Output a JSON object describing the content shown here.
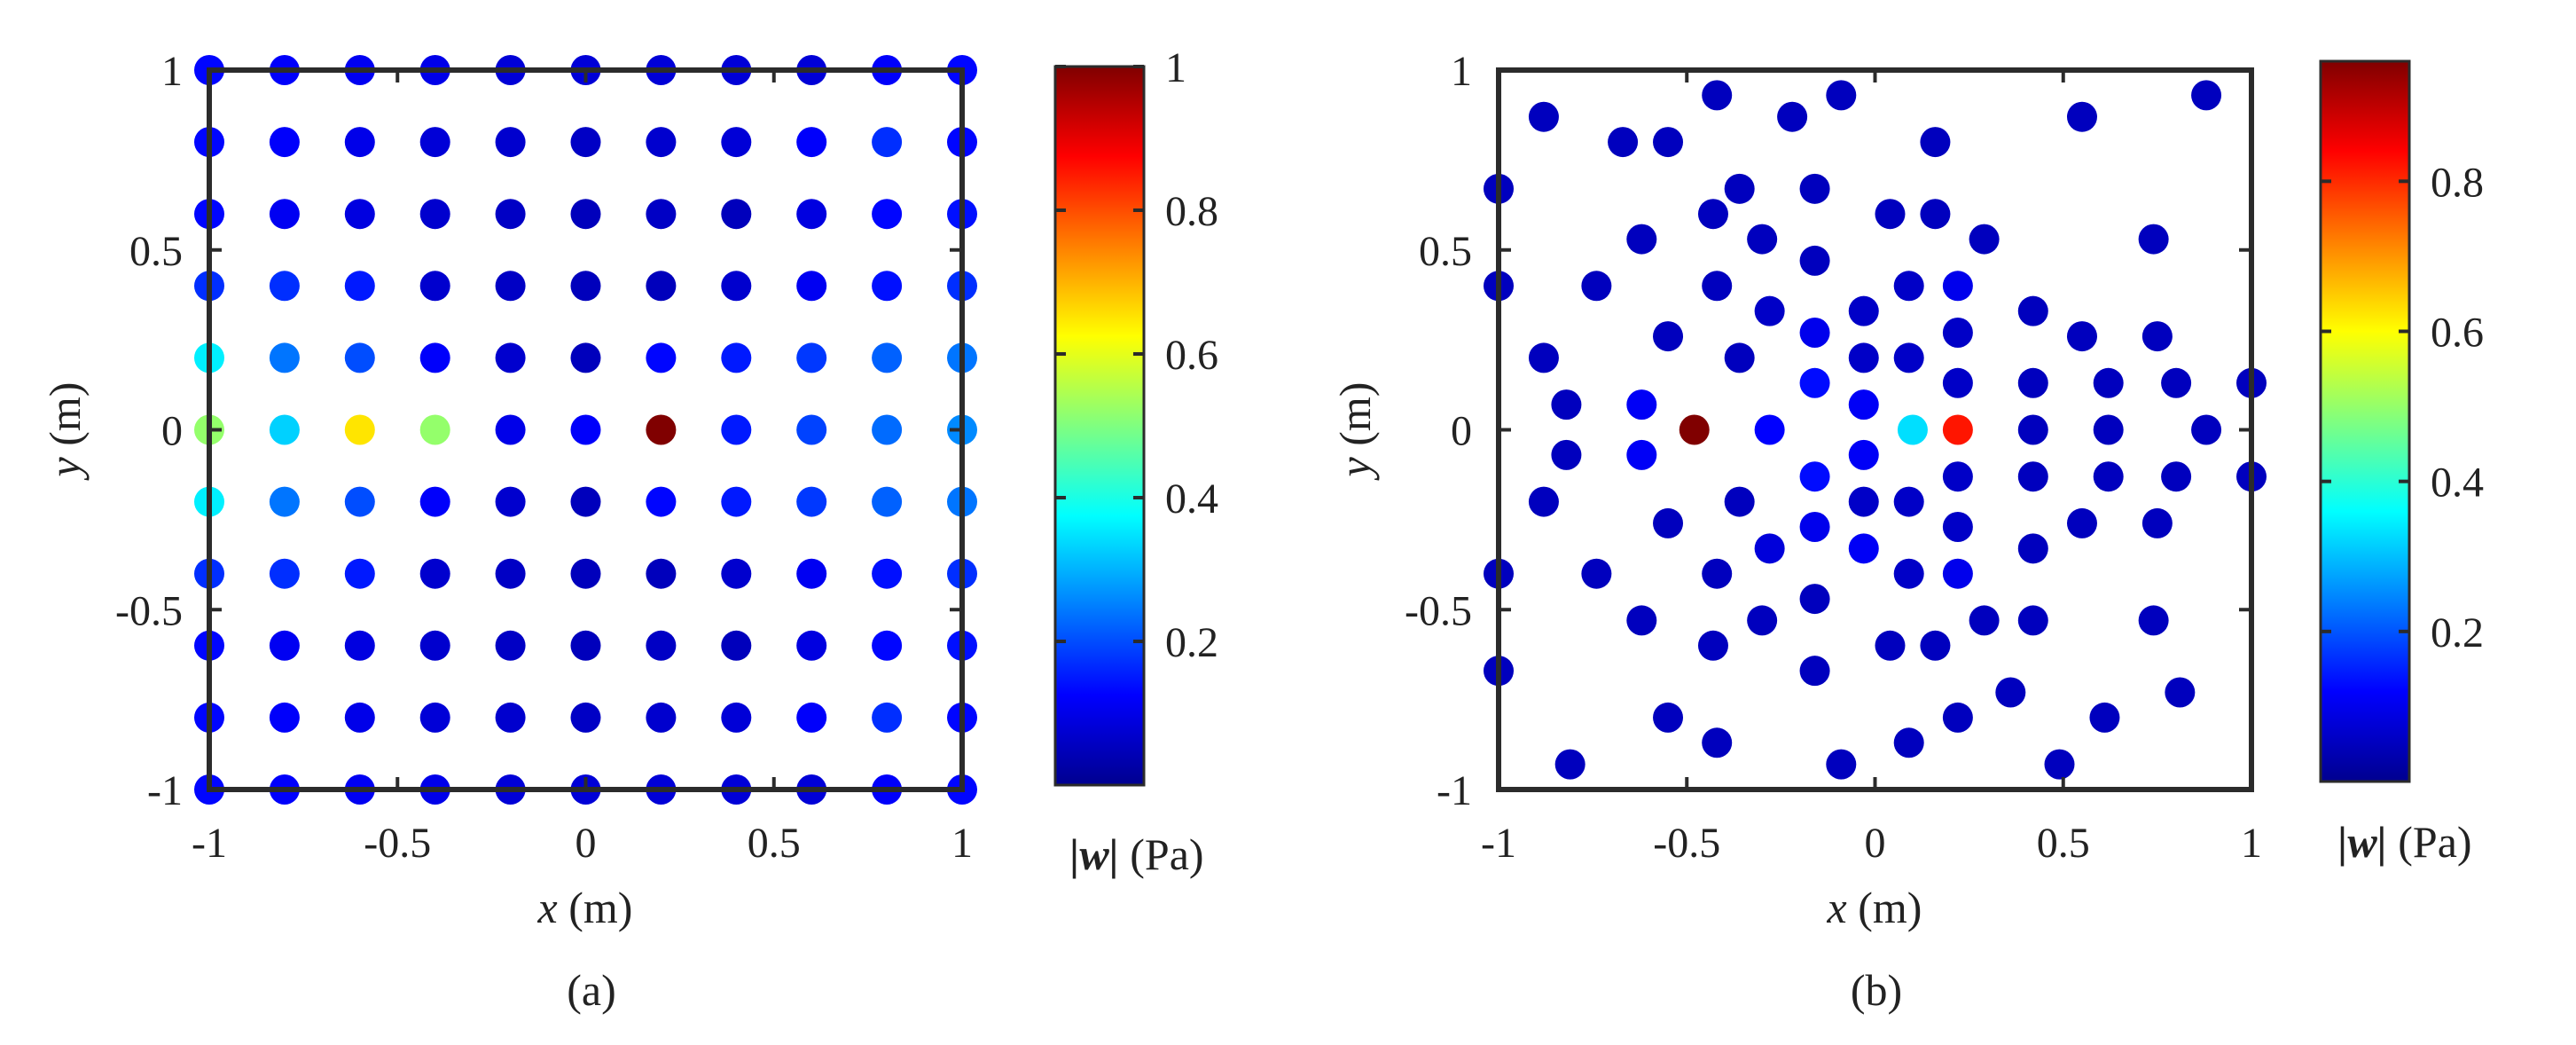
{
  "chart_data": [
    {
      "type": "scatter",
      "panel_caption": "(a)",
      "x_tick_labels": [
        "-1",
        "-0.5",
        "0",
        "0.5",
        "1"
      ],
      "y_tick_labels": [
        "1",
        "0.5",
        "0",
        "-0.5",
        "-1"
      ],
      "xlabel_var": "x",
      "xlabel_unit": " (m)",
      "ylabel_var": "y",
      "ylabel_unit": " (m)",
      "xlim": [
        -1,
        1
      ],
      "ylim": [
        -1,
        1
      ],
      "grid": false,
      "colormap": "jet",
      "colorbar": {
        "range": [
          0,
          1
        ],
        "tick_values": [
          0.2,
          0.4,
          0.6,
          0.8,
          1
        ],
        "tick_labels": [
          "0.2",
          "0.4",
          "0.6",
          "0.8",
          "1"
        ],
        "label_var": "|w|",
        "label_unit": " (Pa)"
      },
      "points": [
        {
          "x": -1,
          "y": 1,
          "v": 0.13
        },
        {
          "x": -0.8,
          "y": 1,
          "v": 0.12
        },
        {
          "x": -0.6,
          "y": 1,
          "v": 0.11
        },
        {
          "x": -0.4,
          "y": 1,
          "v": 0.1
        },
        {
          "x": -0.2,
          "y": 1,
          "v": 0.08
        },
        {
          "x": 0,
          "y": 1,
          "v": 0.08
        },
        {
          "x": 0.2,
          "y": 1,
          "v": 0.08
        },
        {
          "x": 0.4,
          "y": 1,
          "v": 0.08
        },
        {
          "x": 0.6,
          "y": 1,
          "v": 0.08
        },
        {
          "x": 0.8,
          "y": 1,
          "v": 0.12
        },
        {
          "x": 1,
          "y": 1,
          "v": 0.13
        },
        {
          "x": -1,
          "y": 0.8,
          "v": 0.13
        },
        {
          "x": -0.8,
          "y": 0.8,
          "v": 0.12
        },
        {
          "x": -0.6,
          "y": 0.8,
          "v": 0.1
        },
        {
          "x": -0.4,
          "y": 0.8,
          "v": 0.08
        },
        {
          "x": -0.2,
          "y": 0.8,
          "v": 0.07
        },
        {
          "x": 0,
          "y": 0.8,
          "v": 0.06
        },
        {
          "x": 0.2,
          "y": 0.8,
          "v": 0.07
        },
        {
          "x": 0.4,
          "y": 0.8,
          "v": 0.08
        },
        {
          "x": 0.6,
          "y": 0.8,
          "v": 0.12
        },
        {
          "x": 0.8,
          "y": 0.8,
          "v": 0.17
        },
        {
          "x": 1,
          "y": 0.8,
          "v": 0.13
        },
        {
          "x": -1,
          "y": 0.6,
          "v": 0.13
        },
        {
          "x": -0.8,
          "y": 0.6,
          "v": 0.11
        },
        {
          "x": -0.6,
          "y": 0.6,
          "v": 0.09
        },
        {
          "x": -0.4,
          "y": 0.6,
          "v": 0.07
        },
        {
          "x": -0.2,
          "y": 0.6,
          "v": 0.06
        },
        {
          "x": 0,
          "y": 0.6,
          "v": 0.05
        },
        {
          "x": 0.2,
          "y": 0.6,
          "v": 0.06
        },
        {
          "x": 0.4,
          "y": 0.6,
          "v": 0.05
        },
        {
          "x": 0.6,
          "y": 0.6,
          "v": 0.09
        },
        {
          "x": 0.8,
          "y": 0.6,
          "v": 0.13
        },
        {
          "x": 1,
          "y": 0.6,
          "v": 0.14
        },
        {
          "x": -1,
          "y": 0.4,
          "v": 0.17
        },
        {
          "x": -0.8,
          "y": 0.4,
          "v": 0.17
        },
        {
          "x": -0.6,
          "y": 0.4,
          "v": 0.15
        },
        {
          "x": -0.4,
          "y": 0.4,
          "v": 0.07
        },
        {
          "x": -0.2,
          "y": 0.4,
          "v": 0.06
        },
        {
          "x": 0,
          "y": 0.4,
          "v": 0.05
        },
        {
          "x": 0.2,
          "y": 0.4,
          "v": 0.05
        },
        {
          "x": 0.4,
          "y": 0.4,
          "v": 0.07
        },
        {
          "x": 0.6,
          "y": 0.4,
          "v": 0.11
        },
        {
          "x": 0.8,
          "y": 0.4,
          "v": 0.14
        },
        {
          "x": 1,
          "y": 0.4,
          "v": 0.17
        },
        {
          "x": -1,
          "y": 0.2,
          "v": 0.36
        },
        {
          "x": -0.8,
          "y": 0.2,
          "v": 0.24
        },
        {
          "x": -0.6,
          "y": 0.2,
          "v": 0.2
        },
        {
          "x": -0.4,
          "y": 0.2,
          "v": 0.12
        },
        {
          "x": -0.2,
          "y": 0.2,
          "v": 0.07
        },
        {
          "x": 0,
          "y": 0.2,
          "v": 0.05
        },
        {
          "x": 0.2,
          "y": 0.2,
          "v": 0.13
        },
        {
          "x": 0.4,
          "y": 0.2,
          "v": 0.15
        },
        {
          "x": 0.6,
          "y": 0.2,
          "v": 0.18
        },
        {
          "x": 0.8,
          "y": 0.2,
          "v": 0.22
        },
        {
          "x": 1,
          "y": 0.2,
          "v": 0.24
        },
        {
          "x": -1,
          "y": 0,
          "v": 0.52
        },
        {
          "x": -0.8,
          "y": 0,
          "v": 0.33
        },
        {
          "x": -0.6,
          "y": 0,
          "v": 0.65
        },
        {
          "x": -0.4,
          "y": 0,
          "v": 0.52
        },
        {
          "x": -0.2,
          "y": 0,
          "v": 0.1
        },
        {
          "x": 0,
          "y": 0,
          "v": 0.12
        },
        {
          "x": 0.2,
          "y": 0,
          "v": 1.0
        },
        {
          "x": 0.4,
          "y": 0,
          "v": 0.15
        },
        {
          "x": 0.6,
          "y": 0,
          "v": 0.19
        },
        {
          "x": 0.8,
          "y": 0,
          "v": 0.23
        },
        {
          "x": 1,
          "y": 0,
          "v": 0.26
        },
        {
          "x": -1,
          "y": -0.2,
          "v": 0.36
        },
        {
          "x": -0.8,
          "y": -0.2,
          "v": 0.24
        },
        {
          "x": -0.6,
          "y": -0.2,
          "v": 0.2
        },
        {
          "x": -0.4,
          "y": -0.2,
          "v": 0.12
        },
        {
          "x": -0.2,
          "y": -0.2,
          "v": 0.07
        },
        {
          "x": 0,
          "y": -0.2,
          "v": 0.05
        },
        {
          "x": 0.2,
          "y": -0.2,
          "v": 0.13
        },
        {
          "x": 0.4,
          "y": -0.2,
          "v": 0.15
        },
        {
          "x": 0.6,
          "y": -0.2,
          "v": 0.18
        },
        {
          "x": 0.8,
          "y": -0.2,
          "v": 0.22
        },
        {
          "x": 1,
          "y": -0.2,
          "v": 0.24
        },
        {
          "x": -1,
          "y": -0.4,
          "v": 0.17
        },
        {
          "x": -0.8,
          "y": -0.4,
          "v": 0.17
        },
        {
          "x": -0.6,
          "y": -0.4,
          "v": 0.15
        },
        {
          "x": -0.4,
          "y": -0.4,
          "v": 0.07
        },
        {
          "x": -0.2,
          "y": -0.4,
          "v": 0.06
        },
        {
          "x": 0,
          "y": -0.4,
          "v": 0.05
        },
        {
          "x": 0.2,
          "y": -0.4,
          "v": 0.05
        },
        {
          "x": 0.4,
          "y": -0.4,
          "v": 0.07
        },
        {
          "x": 0.6,
          "y": -0.4,
          "v": 0.11
        },
        {
          "x": 0.8,
          "y": -0.4,
          "v": 0.14
        },
        {
          "x": 1,
          "y": -0.4,
          "v": 0.17
        },
        {
          "x": -1,
          "y": -0.6,
          "v": 0.13
        },
        {
          "x": -0.8,
          "y": -0.6,
          "v": 0.11
        },
        {
          "x": -0.6,
          "y": -0.6,
          "v": 0.09
        },
        {
          "x": -0.4,
          "y": -0.6,
          "v": 0.07
        },
        {
          "x": -0.2,
          "y": -0.6,
          "v": 0.06
        },
        {
          "x": 0,
          "y": -0.6,
          "v": 0.05
        },
        {
          "x": 0.2,
          "y": -0.6,
          "v": 0.06
        },
        {
          "x": 0.4,
          "y": -0.6,
          "v": 0.05
        },
        {
          "x": 0.6,
          "y": -0.6,
          "v": 0.09
        },
        {
          "x": 0.8,
          "y": -0.6,
          "v": 0.13
        },
        {
          "x": 1,
          "y": -0.6,
          "v": 0.14
        },
        {
          "x": -1,
          "y": -0.8,
          "v": 0.13
        },
        {
          "x": -0.8,
          "y": -0.8,
          "v": 0.12
        },
        {
          "x": -0.6,
          "y": -0.8,
          "v": 0.1
        },
        {
          "x": -0.4,
          "y": -0.8,
          "v": 0.08
        },
        {
          "x": -0.2,
          "y": -0.8,
          "v": 0.07
        },
        {
          "x": 0,
          "y": -0.8,
          "v": 0.06
        },
        {
          "x": 0.2,
          "y": -0.8,
          "v": 0.07
        },
        {
          "x": 0.4,
          "y": -0.8,
          "v": 0.08
        },
        {
          "x": 0.6,
          "y": -0.8,
          "v": 0.12
        },
        {
          "x": 0.8,
          "y": -0.8,
          "v": 0.17
        },
        {
          "x": 1,
          "y": -0.8,
          "v": 0.13
        },
        {
          "x": -1,
          "y": -1,
          "v": 0.13
        },
        {
          "x": -0.8,
          "y": -1,
          "v": 0.12
        },
        {
          "x": -0.6,
          "y": -1,
          "v": 0.11
        },
        {
          "x": -0.4,
          "y": -1,
          "v": 0.1
        },
        {
          "x": -0.2,
          "y": -1,
          "v": 0.08
        },
        {
          "x": 0,
          "y": -1,
          "v": 0.08
        },
        {
          "x": 0.2,
          "y": -1,
          "v": 0.08
        },
        {
          "x": 0.4,
          "y": -1,
          "v": 0.08
        },
        {
          "x": 0.6,
          "y": -1,
          "v": 0.08
        },
        {
          "x": 0.8,
          "y": -1,
          "v": 0.12
        },
        {
          "x": 1,
          "y": -1,
          "v": 0.13
        }
      ]
    },
    {
      "type": "scatter",
      "panel_caption": "(b)",
      "x_tick_labels": [
        "-1",
        "-0.5",
        "0",
        "0.5",
        "1"
      ],
      "y_tick_labels": [
        "1",
        "0.5",
        "0",
        "-0.5",
        "-1"
      ],
      "xlabel_var": "x",
      "xlabel_unit": " (m)",
      "ylabel_var": "y",
      "ylabel_unit": " (m)",
      "xlim": [
        -1,
        1
      ],
      "ylim": [
        -1,
        1
      ],
      "grid": false,
      "colormap": "jet",
      "colorbar": {
        "range": [
          0,
          0.96
        ],
        "tick_values": [
          0.2,
          0.4,
          0.6,
          0.8
        ],
        "tick_labels": [
          "0.2",
          "0.4",
          "0.6",
          "0.8"
        ],
        "label_var": "|w|",
        "label_unit": " (Pa)"
      },
      "points": [
        {
          "x": -0.48,
          "y": 0,
          "v": 0.96
        },
        {
          "x": 0.22,
          "y": 0,
          "v": 0.82
        },
        {
          "x": 0.1,
          "y": 0,
          "v": 0.33
        },
        {
          "x": -0.28,
          "y": 0,
          "v": 0.12
        },
        {
          "x": -0.16,
          "y": 0.13,
          "v": 0.13
        },
        {
          "x": -0.16,
          "y": -0.13,
          "v": 0.13
        },
        {
          "x": -0.03,
          "y": 0.07,
          "v": 0.11
        },
        {
          "x": -0.03,
          "y": -0.07,
          "v": 0.11
        },
        {
          "x": -0.62,
          "y": 0.07,
          "v": 0.11
        },
        {
          "x": -0.62,
          "y": -0.07,
          "v": 0.11
        },
        {
          "x": -0.16,
          "y": 0.27,
          "v": 0.1
        },
        {
          "x": -0.16,
          "y": -0.27,
          "v": 0.1
        },
        {
          "x": -0.03,
          "y": -0.33,
          "v": 0.11
        },
        {
          "x": 0.22,
          "y": 0.4,
          "v": 0.1
        },
        {
          "x": 0.22,
          "y": -0.4,
          "v": 0.1
        },
        {
          "x": -0.28,
          "y": -0.33,
          "v": 0.08
        },
        {
          "x": 0.09,
          "y": 0.2,
          "v": 0.06
        },
        {
          "x": 0.09,
          "y": -0.2,
          "v": 0.06
        },
        {
          "x": -0.03,
          "y": 0.2,
          "v": 0.06
        },
        {
          "x": -0.03,
          "y": -0.2,
          "v": 0.06
        },
        {
          "x": 0.22,
          "y": 0.13,
          "v": 0.06
        },
        {
          "x": 0.22,
          "y": -0.13,
          "v": 0.06
        },
        {
          "x": 0.09,
          "y": 0.4,
          "v": 0.06
        },
        {
          "x": 0.09,
          "y": -0.4,
          "v": 0.06
        },
        {
          "x": -0.03,
          "y": 0.33,
          "v": 0.06
        },
        {
          "x": -0.28,
          "y": 0.33,
          "v": 0.06
        },
        {
          "x": 0.22,
          "y": 0.27,
          "v": 0.06
        },
        {
          "x": 0.22,
          "y": -0.27,
          "v": 0.06
        },
        {
          "x": 0.42,
          "y": 0.13,
          "v": 0.05
        },
        {
          "x": 0.42,
          "y": -0.13,
          "v": 0.05
        },
        {
          "x": 0.42,
          "y": 0,
          "v": 0.05
        },
        {
          "x": 0.42,
          "y": 0.33,
          "v": 0.05
        },
        {
          "x": 0.42,
          "y": -0.33,
          "v": 0.05
        },
        {
          "x": 0.62,
          "y": 0.13,
          "v": 0.05
        },
        {
          "x": 0.62,
          "y": -0.13,
          "v": 0.05
        },
        {
          "x": 0.62,
          "y": 0,
          "v": 0.05
        },
        {
          "x": 0.55,
          "y": 0.26,
          "v": 0.05
        },
        {
          "x": 0.55,
          "y": -0.26,
          "v": 0.05
        },
        {
          "x": 0.8,
          "y": 0.13,
          "v": 0.05
        },
        {
          "x": 0.8,
          "y": -0.13,
          "v": 0.05
        },
        {
          "x": 0.88,
          "y": 0,
          "v": 0.05
        },
        {
          "x": 0.75,
          "y": 0.26,
          "v": 0.05
        },
        {
          "x": 0.75,
          "y": -0.26,
          "v": 0.05
        },
        {
          "x": 1.0,
          "y": 0.13,
          "v": 0.05
        },
        {
          "x": 1.0,
          "y": -0.13,
          "v": 0.05
        },
        {
          "x": 0.29,
          "y": 0.53,
          "v": 0.05
        },
        {
          "x": 0.29,
          "y": -0.53,
          "v": 0.05
        },
        {
          "x": 0.16,
          "y": 0.6,
          "v": 0.05
        },
        {
          "x": 0.04,
          "y": 0.6,
          "v": 0.05
        },
        {
          "x": 0.04,
          "y": -0.6,
          "v": 0.05
        },
        {
          "x": 0.16,
          "y": -0.6,
          "v": 0.05
        },
        {
          "x": -0.16,
          "y": 0.47,
          "v": 0.05
        },
        {
          "x": -0.16,
          "y": -0.47,
          "v": 0.05
        },
        {
          "x": -0.36,
          "y": 0.2,
          "v": 0.05
        },
        {
          "x": -0.36,
          "y": -0.2,
          "v": 0.05
        },
        {
          "x": -0.42,
          "y": 0.4,
          "v": 0.05
        },
        {
          "x": -0.42,
          "y": -0.4,
          "v": 0.05
        },
        {
          "x": -0.55,
          "y": 0.26,
          "v": 0.05
        },
        {
          "x": -0.55,
          "y": -0.26,
          "v": 0.05
        },
        {
          "x": -0.3,
          "y": 0.53,
          "v": 0.05
        },
        {
          "x": -0.3,
          "y": -0.53,
          "v": 0.05
        },
        {
          "x": -0.82,
          "y": 0.07,
          "v": 0.05
        },
        {
          "x": -0.82,
          "y": -0.07,
          "v": 0.05
        },
        {
          "x": -0.88,
          "y": 0.2,
          "v": 0.05
        },
        {
          "x": -0.88,
          "y": -0.2,
          "v": 0.05
        },
        {
          "x": -0.74,
          "y": 0.4,
          "v": 0.05
        },
        {
          "x": -0.74,
          "y": -0.4,
          "v": 0.05
        },
        {
          "x": -0.62,
          "y": 0.53,
          "v": 0.05
        },
        {
          "x": -0.62,
          "y": -0.53,
          "v": 0.05
        },
        {
          "x": -1.0,
          "y": 0.4,
          "v": 0.05
        },
        {
          "x": -1.0,
          "y": -0.4,
          "v": 0.05
        },
        {
          "x": -1.0,
          "y": 0.67,
          "v": 0.05
        },
        {
          "x": -1.0,
          "y": -0.67,
          "v": 0.05
        },
        {
          "x": -0.16,
          "y": 0.67,
          "v": 0.05
        },
        {
          "x": -0.16,
          "y": -0.67,
          "v": 0.05
        },
        {
          "x": -0.43,
          "y": 0.6,
          "v": 0.05
        },
        {
          "x": -0.43,
          "y": -0.6,
          "v": 0.05
        },
        {
          "x": -0.36,
          "y": 0.67,
          "v": 0.05
        },
        {
          "x": 0.42,
          "y": -0.53,
          "v": 0.05
        },
        {
          "x": 0.74,
          "y": 0.53,
          "v": 0.05
        },
        {
          "x": 0.74,
          "y": -0.53,
          "v": 0.05
        },
        {
          "x": 0.36,
          "y": -0.73,
          "v": 0.05
        },
        {
          "x": 0.22,
          "y": -0.8,
          "v": 0.05
        },
        {
          "x": 0.09,
          "y": -0.87,
          "v": 0.05
        },
        {
          "x": -0.09,
          "y": -0.93,
          "v": 0.05
        },
        {
          "x": -0.42,
          "y": -0.87,
          "v": 0.05
        },
        {
          "x": -0.55,
          "y": -0.8,
          "v": 0.05
        },
        {
          "x": -0.81,
          "y": -0.93,
          "v": 0.05
        },
        {
          "x": 0.61,
          "y": -0.8,
          "v": 0.05
        },
        {
          "x": 0.81,
          "y": -0.73,
          "v": 0.05
        },
        {
          "x": 0.49,
          "y": -0.93,
          "v": 0.05
        },
        {
          "x": -0.88,
          "y": 0.87,
          "v": 0.05
        },
        {
          "x": -0.67,
          "y": 0.8,
          "v": 0.05
        },
        {
          "x": -0.42,
          "y": 0.93,
          "v": 0.05
        },
        {
          "x": -0.22,
          "y": 0.87,
          "v": 0.05
        },
        {
          "x": -0.09,
          "y": 0.93,
          "v": 0.05
        },
        {
          "x": 0.16,
          "y": 0.8,
          "v": 0.05
        },
        {
          "x": 0.55,
          "y": 0.87,
          "v": 0.05
        },
        {
          "x": 0.88,
          "y": 0.93,
          "v": 0.05
        },
        {
          "x": -0.55,
          "y": 0.8,
          "v": 0.05
        }
      ]
    }
  ]
}
